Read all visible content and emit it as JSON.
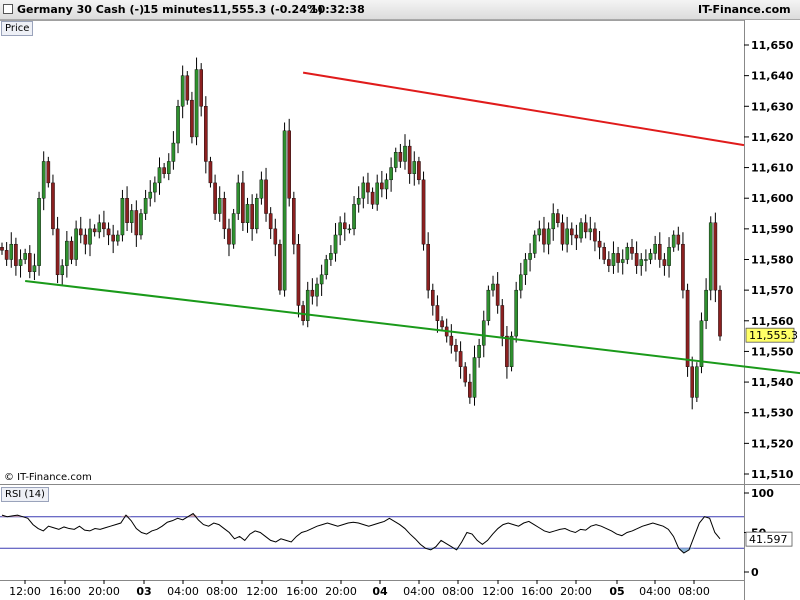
{
  "header": {
    "instrument": "Germany 30 Cash (-)",
    "timeframe": "15 minutes",
    "quote": "11,555.3 (-0.24%)",
    "time": "10:32:38",
    "brand": "IT-Finance.com"
  },
  "copyright": "© IT-Finance.com",
  "colors": {
    "up": "#2f8f2f",
    "down": "#8b2020",
    "resistance": "#e01b1b",
    "support": "#1a9a1a",
    "rsi_line": "#000000",
    "rsi_band": "#3b3bb3",
    "last_price_box": "#ffff66"
  },
  "chart_data": [
    {
      "type": "candlestick",
      "title": "Price",
      "ylim": [
        11505,
        11660
      ],
      "yticks": [
        "11,510",
        "11,520",
        "11,530",
        "11,540",
        "11,550",
        "11,560",
        "11,570",
        "11,580",
        "11,590",
        "11,600",
        "11,610",
        "11,620",
        "11,630",
        "11,640",
        "11,650"
      ],
      "last_price": "11,555.3",
      "last_price_value": 11555.3,
      "grid": false,
      "x_time_labels": [
        "12:00",
        "16:00",
        "20:00",
        "03",
        "04:00",
        "08:00",
        "12:00",
        "16:00",
        "20:00",
        "04",
        "04:00",
        "08:00",
        "12:00",
        "16:00",
        "20:00",
        "05",
        "04:00",
        "08:00"
      ],
      "x_day_labels": [
        "03",
        "04",
        "05"
      ],
      "close_series": [
        11583,
        11580,
        11585,
        11578,
        11580,
        11582,
        11576,
        11578,
        11600,
        11612,
        11605,
        11590,
        11575,
        11578,
        11586,
        11580,
        11590,
        11588,
        11585,
        11590,
        11589,
        11592,
        11590,
        11588,
        11586,
        11588,
        11600,
        11592,
        11596,
        11588,
        11595,
        11600,
        11602,
        11605,
        11610,
        11608,
        11612,
        11618,
        11630,
        11640,
        11632,
        11620,
        11642,
        11630,
        11612,
        11605,
        11595,
        11600,
        11590,
        11585,
        11595,
        11605,
        11592,
        11598,
        11590,
        11600,
        11606,
        11595,
        11590,
        11585,
        11570,
        11622,
        11600,
        11585,
        11565,
        11560,
        11570,
        11568,
        11572,
        11575,
        11580,
        11582,
        11588,
        11592,
        11590,
        11590,
        11598,
        11600,
        11605,
        11602,
        11598,
        11605,
        11603,
        11606,
        11610,
        11615,
        11612,
        11617,
        11608,
        11612,
        11606,
        11585,
        11570,
        11565,
        11560,
        11558,
        11555,
        11552,
        11550,
        11545,
        11540,
        11535,
        11548,
        11552,
        11560,
        11570,
        11572,
        11565,
        11555,
        11545,
        11555,
        11570,
        11575,
        11580,
        11582,
        11588,
        11590,
        11585,
        11590,
        11595,
        11592,
        11585,
        11590,
        11588,
        11587,
        11592,
        11589,
        11590,
        11586,
        11584,
        11580,
        11578,
        11582,
        11579,
        11580,
        11584,
        11582,
        11578,
        11580,
        11580,
        11582,
        11585,
        11580,
        11578,
        11584,
        11588,
        11585,
        11570,
        11545,
        11535,
        11545,
        11560,
        11570,
        11592,
        11570,
        11555
      ],
      "annotations": [
        {
          "type": "trendline",
          "name": "resistance",
          "from": {
            "x_index": 65,
            "y": 11641
          },
          "to": {
            "x_index": 246,
            "y": 11596
          }
        },
        {
          "type": "trendline",
          "name": "support",
          "from": {
            "x_index": 5,
            "y": 11573
          },
          "to": {
            "x_index": 233,
            "y": 11532
          }
        }
      ]
    },
    {
      "type": "line",
      "title": "RSI (14)",
      "ylim": [
        0,
        100
      ],
      "yticks": [
        "100",
        "50",
        "0"
      ],
      "bands": [
        70,
        30
      ],
      "last_value": "41.597",
      "values": [
        72,
        70,
        71,
        72,
        70,
        68,
        60,
        55,
        52,
        58,
        56,
        54,
        57,
        55,
        54,
        58,
        53,
        52,
        55,
        54,
        56,
        58,
        60,
        62,
        72,
        65,
        55,
        50,
        48,
        52,
        54,
        58,
        63,
        65,
        68,
        66,
        70,
        74,
        66,
        60,
        58,
        62,
        60,
        55,
        50,
        42,
        45,
        40,
        48,
        52,
        50,
        45,
        40,
        38,
        42,
        40,
        38,
        45,
        50,
        52,
        55,
        58,
        60,
        62,
        60,
        58,
        60,
        62,
        63,
        62,
        60,
        58,
        60,
        62,
        64,
        68,
        64,
        60,
        55,
        48,
        42,
        35,
        30,
        28,
        32,
        40,
        36,
        32,
        28,
        38,
        50,
        48,
        40,
        35,
        40,
        48,
        55,
        60,
        62,
        60,
        58,
        62,
        64,
        60,
        56,
        52,
        50,
        52,
        54,
        55,
        52,
        50,
        54,
        53,
        58,
        60,
        58,
        55,
        52,
        48,
        46,
        50,
        52,
        55,
        58,
        60,
        62,
        60,
        58,
        54,
        45,
        30,
        24,
        28,
        45,
        62,
        70,
        68,
        50,
        42
      ]
    }
  ]
}
